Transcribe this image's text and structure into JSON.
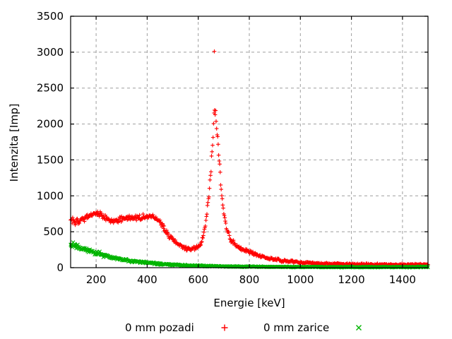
{
  "chart_data": {
    "type": "scatter",
    "title": "",
    "xlabel": "Energie [keV]",
    "ylabel": "Intenzita [Imp]",
    "xlim": [
      100,
      1500
    ],
    "ylim": [
      0,
      3500
    ],
    "xticks": [
      200,
      400,
      600,
      800,
      1000,
      1200,
      1400
    ],
    "yticks": [
      0,
      500,
      1000,
      1500,
      2000,
      2500,
      3000,
      3500
    ],
    "grid": true,
    "grid_color": "#9e9e9e",
    "background": "#ffffff",
    "legend_position": "below-center",
    "series": [
      {
        "name": "0 mm pozadi",
        "marker": "plus",
        "color": "#ff0000",
        "step_keV": 2,
        "anchors": [
          [
            100,
            650,
            85
          ],
          [
            120,
            640,
            70
          ],
          [
            145,
            665,
            62
          ],
          [
            170,
            715,
            60
          ],
          [
            195,
            760,
            60
          ],
          [
            215,
            745,
            58
          ],
          [
            240,
            685,
            55
          ],
          [
            265,
            650,
            55
          ],
          [
            290,
            660,
            55
          ],
          [
            320,
            690,
            55
          ],
          [
            350,
            690,
            55
          ],
          [
            375,
            700,
            58
          ],
          [
            400,
            718,
            58
          ],
          [
            425,
            708,
            58
          ],
          [
            450,
            645,
            58
          ],
          [
            470,
            525,
            55
          ],
          [
            490,
            425,
            50
          ],
          [
            515,
            335,
            45
          ],
          [
            540,
            288,
            42
          ],
          [
            565,
            263,
            40
          ],
          [
            590,
            268,
            40
          ],
          [
            610,
            330,
            45
          ],
          [
            625,
            520,
            60
          ],
          [
            640,
            910,
            95
          ],
          [
            650,
            1360,
            115
          ],
          [
            658,
            1860,
            120
          ],
          [
            663,
            2160,
            120
          ],
          [
            668,
            2110,
            120
          ],
          [
            675,
            1810,
            120
          ],
          [
            683,
            1420,
            110
          ],
          [
            692,
            1010,
            95
          ],
          [
            702,
            710,
            78
          ],
          [
            712,
            525,
            62
          ],
          [
            725,
            405,
            52
          ],
          [
            740,
            332,
            46
          ],
          [
            760,
            282,
            42
          ],
          [
            780,
            246,
            40
          ],
          [
            800,
            216,
            38
          ],
          [
            830,
            176,
            35
          ],
          [
            860,
            146,
            32
          ],
          [
            900,
            116,
            30
          ],
          [
            950,
            89,
            26
          ],
          [
            1000,
            73,
            24
          ],
          [
            1060,
            61,
            22
          ],
          [
            1120,
            53,
            21
          ],
          [
            1200,
            47,
            20
          ],
          [
            1300,
            44,
            19
          ],
          [
            1400,
            42,
            18
          ],
          [
            1500,
            42,
            18
          ]
        ],
        "outliers": [
          [
            663,
            3010
          ]
        ],
        "peak_keV": 662,
        "peak_counts": 2200
      },
      {
        "name": "0 mm zarice",
        "marker": "cross",
        "color": "#00b400",
        "step_keV": 2,
        "anchors": [
          [
            100,
            330,
            70
          ],
          [
            120,
            300,
            55
          ],
          [
            145,
            268,
            48
          ],
          [
            170,
            238,
            44
          ],
          [
            195,
            212,
            40
          ],
          [
            220,
            184,
            36
          ],
          [
            250,
            152,
            33
          ],
          [
            280,
            128,
            30
          ],
          [
            310,
            108,
            28
          ],
          [
            340,
            92,
            26
          ],
          [
            370,
            80,
            24
          ],
          [
            400,
            68,
            22
          ],
          [
            430,
            58,
            21
          ],
          [
            460,
            50,
            20
          ],
          [
            490,
            43,
            18
          ],
          [
            520,
            37,
            17
          ],
          [
            550,
            32,
            16
          ],
          [
            580,
            28,
            15
          ],
          [
            610,
            25,
            14
          ],
          [
            640,
            22,
            13
          ],
          [
            670,
            20,
            12
          ],
          [
            700,
            18,
            12
          ],
          [
            750,
            15,
            11
          ],
          [
            800,
            13,
            11
          ],
          [
            850,
            12,
            10
          ],
          [
            900,
            11,
            10
          ],
          [
            1000,
            10,
            10
          ],
          [
            1100,
            9,
            10
          ],
          [
            1200,
            9,
            10
          ],
          [
            1300,
            8,
            10
          ],
          [
            1400,
            8,
            10
          ],
          [
            1450,
            9,
            11
          ],
          [
            1500,
            13,
            14
          ]
        ],
        "outliers": []
      }
    ]
  }
}
